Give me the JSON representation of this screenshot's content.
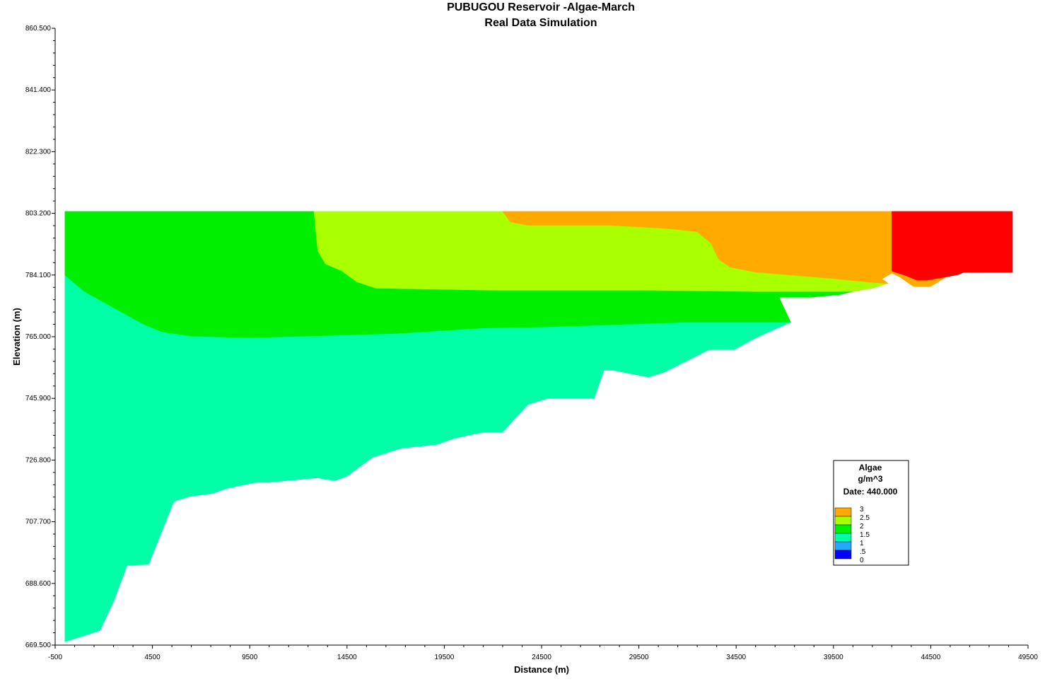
{
  "chart_data": {
    "type": "contour",
    "title": "PUBUGOU Reservoir -Algae-March",
    "subtitle": "Real Data Simulation",
    "xlabel": "Distance (m)",
    "ylabel": "Elevation (m)",
    "xlim": [
      -500,
      49500
    ],
    "ylim": [
      669.5,
      860.5
    ],
    "x_ticks": [
      -500,
      4500,
      9500,
      14500,
      19500,
      24500,
      29500,
      34500,
      39500,
      44500,
      49500
    ],
    "x_tick_labels": [
      "-500",
      "4500",
      "9500",
      "14500",
      "19500",
      "24500",
      "29500",
      "34500",
      "39500",
      "44500",
      "49500"
    ],
    "y_ticks": [
      669.5,
      688.6,
      707.7,
      726.8,
      745.9,
      765.0,
      784.1,
      803.2,
      822.3,
      841.4,
      860.5
    ],
    "y_tick_labels": [
      "669.500",
      "688.600",
      "707.700",
      "726.800",
      "745.900",
      "765.000",
      "784.100",
      "803.200",
      "822.300",
      "841.400",
      "860.500"
    ],
    "legend": {
      "title": "Algae",
      "unit": "g/m^3",
      "date": "Date: 440.000",
      "placement": "lower-right",
      "levels": [
        {
          "label": "3",
          "color": "#ffaa00"
        },
        {
          "label": "2.5",
          "color": "#aaff00"
        },
        {
          "label": "2",
          "color": "#00ee00"
        },
        {
          "label": "1.5",
          "color": "#00ffa6"
        },
        {
          "label": "1",
          "color": "#22aaff"
        },
        {
          "label": ".5",
          "color": "#0000ff"
        },
        {
          "label": "0",
          "color": ""
        }
      ]
    },
    "regions": [
      {
        "name": "1-1.5",
        "color": "#00ffa6",
        "points": [
          [
            0,
            784.1
          ],
          [
            1000,
            779
          ],
          [
            2500,
            774
          ],
          [
            4000,
            769
          ],
          [
            5000,
            766.5
          ],
          [
            6500,
            765.2
          ],
          [
            9500,
            764.7
          ],
          [
            12500,
            765.2
          ],
          [
            17000,
            766
          ],
          [
            21500,
            767.7
          ],
          [
            24500,
            768
          ],
          [
            28500,
            768.8
          ],
          [
            32000,
            769.5
          ],
          [
            37300,
            769.5
          ],
          [
            36000,
            766
          ],
          [
            35300,
            764
          ],
          [
            34400,
            761
          ],
          [
            33100,
            761
          ],
          [
            31800,
            757
          ],
          [
            30800,
            754
          ],
          [
            30000,
            752.5
          ],
          [
            29200,
            753.4
          ],
          [
            28200,
            754.6
          ],
          [
            27700,
            754.6
          ],
          [
            27200,
            745.9
          ],
          [
            24800,
            745.9
          ],
          [
            23800,
            744
          ],
          [
            23100,
            739.5
          ],
          [
            22500,
            735.5
          ],
          [
            21600,
            735.5
          ],
          [
            20800,
            734.6
          ],
          [
            20000,
            733.5
          ],
          [
            19100,
            731.6
          ],
          [
            17300,
            730.5
          ],
          [
            15800,
            727.6
          ],
          [
            14900,
            723.6
          ],
          [
            14500,
            721.8
          ],
          [
            13900,
            720.5
          ],
          [
            13400,
            720.8
          ],
          [
            13000,
            721.3
          ],
          [
            10500,
            719.9
          ],
          [
            9800,
            719.9
          ],
          [
            8300,
            718
          ],
          [
            7600,
            716.5
          ],
          [
            6400,
            715.5
          ],
          [
            5600,
            714
          ],
          [
            4300,
            694.5
          ],
          [
            3200,
            694.2
          ],
          [
            2500,
            683
          ],
          [
            1800,
            674
          ],
          [
            0,
            670.5
          ]
        ]
      },
      {
        "name": "1.5-2",
        "color": "#00ee00",
        "points": [
          [
            0,
            803.8
          ],
          [
            12800,
            803.8
          ],
          [
            13000,
            791.5
          ],
          [
            13400,
            787.5
          ],
          [
            14200,
            785.5
          ],
          [
            15000,
            782
          ],
          [
            16000,
            780
          ],
          [
            22000,
            779.4
          ],
          [
            30000,
            779.4
          ],
          [
            35500,
            779
          ],
          [
            40500,
            779
          ],
          [
            39800,
            778
          ],
          [
            38300,
            777.2
          ],
          [
            36700,
            777.2
          ],
          [
            37300,
            769.5
          ],
          [
            32000,
            769.5
          ],
          [
            28500,
            768.8
          ],
          [
            24500,
            768
          ],
          [
            21500,
            767.7
          ],
          [
            17000,
            766
          ],
          [
            12500,
            765.2
          ],
          [
            9500,
            764.7
          ],
          [
            6500,
            765.2
          ],
          [
            5000,
            766.5
          ],
          [
            4000,
            769
          ],
          [
            2500,
            774
          ],
          [
            1000,
            779
          ],
          [
            0,
            784.1
          ]
        ]
      },
      {
        "name": "2-2.5",
        "color": "#aaff00",
        "points": [
          [
            12800,
            803.8
          ],
          [
            22500,
            803.8
          ],
          [
            22900,
            800.5
          ],
          [
            23800,
            799.5
          ],
          [
            28000,
            799.5
          ],
          [
            31000,
            798.5
          ],
          [
            32500,
            797.5
          ],
          [
            33200,
            794
          ],
          [
            33600,
            789
          ],
          [
            34200,
            786.5
          ],
          [
            35500,
            785
          ],
          [
            39500,
            783
          ],
          [
            41500,
            781.8
          ],
          [
            42300,
            781.5
          ],
          [
            41500,
            780
          ],
          [
            40500,
            779
          ],
          [
            35500,
            779
          ],
          [
            30000,
            779.4
          ],
          [
            22000,
            779.4
          ],
          [
            16000,
            780
          ],
          [
            15000,
            782
          ],
          [
            14200,
            785.5
          ],
          [
            13400,
            787.5
          ],
          [
            13000,
            791.5
          ]
        ]
      },
      {
        "name": "2.5-3",
        "color": "#ffaa00",
        "points": [
          [
            22500,
            803.8
          ],
          [
            42500,
            803.8
          ],
          [
            42500,
            785.3
          ],
          [
            43200,
            784
          ],
          [
            43800,
            782.5
          ],
          [
            44300,
            782.5
          ],
          [
            45300,
            783.5
          ],
          [
            44900,
            782
          ],
          [
            44500,
            780.6
          ],
          [
            43600,
            780.6
          ],
          [
            42900,
            783.5
          ],
          [
            42500,
            784.7
          ],
          [
            42000,
            782.9
          ],
          [
            42300,
            781.5
          ],
          [
            41500,
            781.8
          ],
          [
            39500,
            783
          ],
          [
            35500,
            785
          ],
          [
            34200,
            786.5
          ],
          [
            33600,
            789
          ],
          [
            33200,
            794
          ],
          [
            32500,
            797.5
          ],
          [
            31000,
            798.5
          ],
          [
            28000,
            799.5
          ],
          [
            23800,
            799.5
          ],
          [
            22900,
            800.5
          ]
        ]
      },
      {
        "name": "above-3",
        "color": "#ff0000",
        "points": [
          [
            42500,
            803.8
          ],
          [
            48700,
            803.8
          ],
          [
            48700,
            784.9
          ],
          [
            46200,
            784.9
          ],
          [
            45900,
            784.2
          ],
          [
            45300,
            783.5
          ],
          [
            44300,
            782.5
          ],
          [
            43800,
            782.5
          ],
          [
            43200,
            784
          ],
          [
            42500,
            785.3
          ]
        ]
      }
    ],
    "bed_profile": [
      [
        0,
        670.5
      ],
      [
        1800,
        674
      ],
      [
        2500,
        683
      ],
      [
        3200,
        694.2
      ],
      [
        4300,
        694.5
      ],
      [
        5600,
        714
      ],
      [
        6400,
        715.5
      ],
      [
        7600,
        716.5
      ],
      [
        8300,
        718
      ],
      [
        9800,
        719.9
      ],
      [
        10500,
        719.9
      ],
      [
        13000,
        721.3
      ],
      [
        13400,
        720.8
      ],
      [
        13900,
        720.5
      ],
      [
        14500,
        721.8
      ],
      [
        14900,
        723.6
      ],
      [
        15800,
        727.6
      ],
      [
        17300,
        730.5
      ],
      [
        19100,
        731.6
      ],
      [
        20000,
        733.5
      ],
      [
        20800,
        734.6
      ],
      [
        21600,
        735.5
      ],
      [
        22500,
        735.5
      ],
      [
        23100,
        739.5
      ],
      [
        23800,
        744
      ],
      [
        24800,
        745.9
      ],
      [
        27200,
        745.9
      ],
      [
        27700,
        754.6
      ],
      [
        28200,
        754.6
      ],
      [
        29200,
        753.4
      ],
      [
        30000,
        752.5
      ],
      [
        30800,
        754
      ],
      [
        31800,
        757
      ],
      [
        33100,
        761
      ],
      [
        34400,
        761
      ],
      [
        35300,
        764
      ],
      [
        36000,
        766
      ],
      [
        37300,
        769.5
      ],
      [
        36700,
        777.2
      ],
      [
        38300,
        777.2
      ],
      [
        39800,
        778
      ],
      [
        40500,
        779
      ],
      [
        41500,
        780
      ],
      [
        42300,
        781.5
      ],
      [
        42000,
        782.9
      ],
      [
        42500,
        784.7
      ],
      [
        42900,
        783.5
      ],
      [
        43600,
        780.6
      ],
      [
        44500,
        780.6
      ],
      [
        44900,
        782
      ],
      [
        45300,
        783.5
      ],
      [
        45900,
        784.2
      ],
      [
        46200,
        784.9
      ],
      [
        48700,
        784.9
      ]
    ],
    "water_surface": 803.8
  }
}
